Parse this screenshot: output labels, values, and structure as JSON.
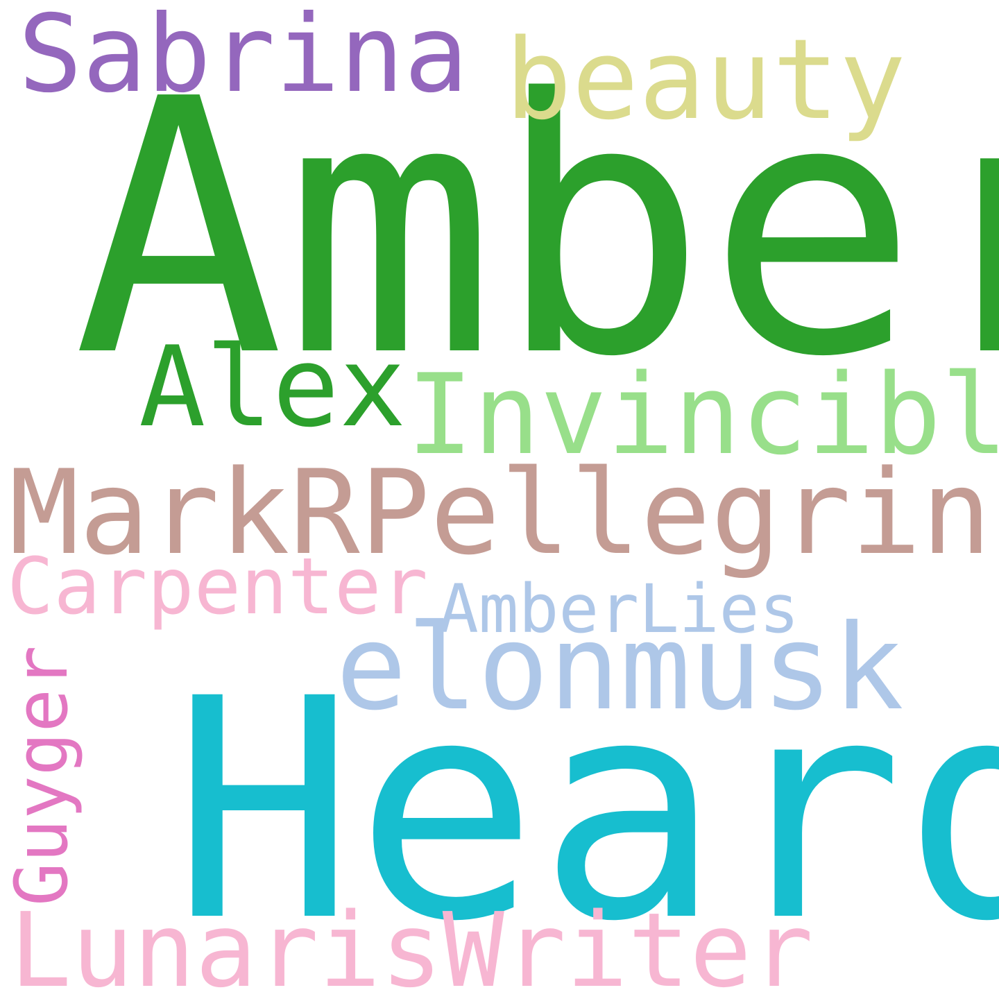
{
  "cloud": {
    "words": [
      {
        "text": "Amber",
        "color": "#2ca02c"
      },
      {
        "text": "Heard",
        "color": "#17becf"
      },
      {
        "text": "Sabrina",
        "color": "#9467bd"
      },
      {
        "text": "beauty",
        "color": "#dbdb8d"
      },
      {
        "text": "Alex",
        "color": "#2ca02c"
      },
      {
        "text": "Invincible",
        "color": "#98df8a"
      },
      {
        "text": "MarkRPellegrino",
        "color": "#c49c94"
      },
      {
        "text": "Carpenter",
        "color": "#f7b6d2"
      },
      {
        "text": "AmberLies",
        "color": "#aec7e8"
      },
      {
        "text": "elonmusk",
        "color": "#aec7e8"
      },
      {
        "text": "LunarisWriter",
        "color": "#f7b6d2"
      },
      {
        "text": "Guyger",
        "color": "#e377c2",
        "orientation": "vertical"
      }
    ]
  }
}
